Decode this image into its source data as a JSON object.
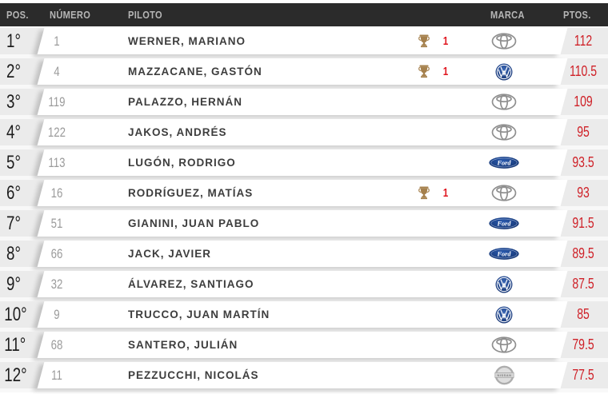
{
  "header": {
    "columns": [
      "POS.",
      "NÚMERO",
      "PILOTO",
      "MARCA",
      "PTOS."
    ]
  },
  "standings": [
    {
      "pos": "1°",
      "numero": "1",
      "piloto": "WERNER, MARIANO",
      "wins": "1",
      "marca": "toyota",
      "ptos": "112"
    },
    {
      "pos": "2°",
      "numero": "4",
      "piloto": "MAZZACANE, GASTÓN",
      "wins": "1",
      "marca": "volkswagen",
      "ptos": "110.5"
    },
    {
      "pos": "3°",
      "numero": "119",
      "piloto": "PALAZZO, HERNÁN",
      "wins": "",
      "marca": "toyota",
      "ptos": "109"
    },
    {
      "pos": "4°",
      "numero": "122",
      "piloto": "JAKOS, ANDRÉS",
      "wins": "",
      "marca": "toyota",
      "ptos": "95"
    },
    {
      "pos": "5°",
      "numero": "113",
      "piloto": "LUGÓN, RODRIGO",
      "wins": "",
      "marca": "ford",
      "ptos": "93.5"
    },
    {
      "pos": "6°",
      "numero": "16",
      "piloto": "RODRÍGUEZ, MATÍAS",
      "wins": "1",
      "marca": "toyota",
      "ptos": "93"
    },
    {
      "pos": "7°",
      "numero": "51",
      "piloto": "GIANINI, JUAN PABLO",
      "wins": "",
      "marca": "ford",
      "ptos": "91.5"
    },
    {
      "pos": "8°",
      "numero": "66",
      "piloto": "JACK, JAVIER",
      "wins": "",
      "marca": "ford",
      "ptos": "89.5"
    },
    {
      "pos": "9°",
      "numero": "32",
      "piloto": "ÁLVAREZ, SANTIAGO",
      "wins": "",
      "marca": "volkswagen",
      "ptos": "87.5"
    },
    {
      "pos": "10°",
      "numero": "9",
      "piloto": "TRUCCO, JUAN MARTÍN",
      "wins": "",
      "marca": "volkswagen",
      "ptos": "85"
    },
    {
      "pos": "11°",
      "numero": "68",
      "piloto": "SANTERO, JULIÁN",
      "wins": "",
      "marca": "toyota",
      "ptos": "79.5"
    },
    {
      "pos": "12°",
      "numero": "11",
      "piloto": "PEZZUCCHI, NICOLÁS",
      "wins": "",
      "marca": "nissan",
      "ptos": "77.5"
    }
  ],
  "icons": {
    "trophy": "trophy-icon",
    "ford_logo_text": "Ford",
    "nissan_logo_text": "NISSAN"
  },
  "colors": {
    "header_bg": "#2b2b2b",
    "header_text": "#b6b6b6",
    "band_bg": "#ebebeb",
    "row_card": "#ffffff",
    "accent_red": "#cf2128",
    "wins_red": "#e0161f",
    "trophy_bronze": "#a5804c",
    "toyota_gray": "#8f8f8f",
    "vw_blue": "#1d4492",
    "ford_blue": "#1c4da0",
    "nissan_silver": "#adadad"
  }
}
